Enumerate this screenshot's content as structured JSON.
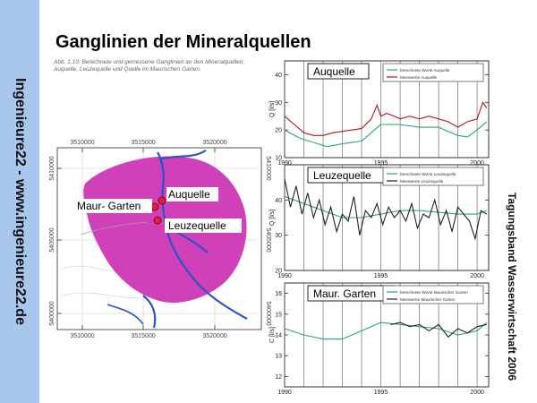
{
  "sidebar": {
    "text": "Ingenieure22 - www.ingenieure22.de"
  },
  "slide": {
    "title": "Ganglinien der Mineralquellen",
    "right_text": "Tagungsband Wasserwirtschaft 2006"
  },
  "caption": "Abb. 1.10: Berechnete und gemessene Ganglinien an den Mineralquellen; Auquelle, Leuzequelle und Quelle im Maurischen Garten.",
  "map": {
    "x_ticks": [
      "3510000",
      "3515000",
      "3520000"
    ],
    "y_ticks": [
      "5410000",
      "5405000",
      "5400000"
    ],
    "labels": {
      "auquelle": "Auquelle",
      "maur": "Maur- Garten",
      "leuze": "Leuzequelle"
    },
    "colors": {
      "plume": "#d040b8",
      "river": "#2a55c8",
      "spring": "#e0203a"
    }
  },
  "chart_data": [
    {
      "type": "line",
      "title": "Auquelle",
      "ylabel": "Q [l/s]",
      "y_ticks": [
        "40",
        "30",
        "20",
        "10"
      ],
      "x_ticks": [
        "1990",
        "1995",
        "2000"
      ],
      "ylim": [
        10,
        45
      ],
      "xlim": [
        1990,
        2000.6
      ],
      "legend": [
        "berechnete Werte Auquelle",
        "Messwerte Auquelle"
      ],
      "series": [
        {
          "name": "berechnete Werte Auquelle",
          "color": "#2ea86a",
          "x": [
            1990.0,
            1990.8,
            1991.5,
            1992.2,
            1993.0,
            1994.0,
            1994.5,
            1995.0,
            1996.0,
            1997.0,
            1998.0,
            1998.5,
            1999.0,
            1999.5,
            2000.0,
            2000.5
          ],
          "y": [
            20,
            17,
            15.5,
            14,
            15,
            16,
            19,
            22,
            22,
            21,
            21,
            19.5,
            18,
            17.5,
            20,
            23
          ]
        },
        {
          "name": "Messwerte Auquelle",
          "color": "#b01818",
          "x": [
            1990.0,
            1990.5,
            1991.0,
            1991.5,
            1992.0,
            1992.5,
            1993.0,
            1993.5,
            1994.0,
            1994.5,
            1994.8,
            1995.0,
            1995.3,
            1995.7,
            1996.0,
            1996.5,
            1997.0,
            1997.5,
            1998.0,
            1998.5,
            1999.0,
            1999.5,
            2000.0,
            2000.3,
            2000.5
          ],
          "y": [
            25,
            22,
            19,
            18,
            18,
            19,
            19.5,
            20,
            20.5,
            24,
            29,
            25,
            26,
            25,
            24,
            25,
            24,
            25,
            24,
            23,
            21,
            23,
            24,
            30,
            28
          ]
        }
      ]
    },
    {
      "type": "line",
      "title": "Leuzequelle",
      "ylabel": "Q [l/s]",
      "y_ticks": [
        "40",
        "30",
        "20"
      ],
      "x_ticks": [
        "1990",
        "1995",
        "2000"
      ],
      "ylim": [
        20,
        50
      ],
      "xlim": [
        1990,
        2000.6
      ],
      "legend": [
        "berechnete Werte Leuzequelle",
        "Messwerte Leuzequelle"
      ],
      "series": [
        {
          "name": "berechnete Werte Leuzequelle",
          "color": "#2ea86a",
          "x": [
            1990.0,
            1991.0,
            1992.0,
            1993.0,
            1994.0,
            1995.0,
            1996.0,
            1997.0,
            1998.0,
            1999.0,
            2000.0,
            2000.5
          ],
          "y": [
            41,
            39,
            37,
            35,
            35,
            36,
            37,
            37,
            36.5,
            36,
            36,
            37
          ]
        },
        {
          "name": "Messwerte Leuzequelle",
          "color": "#222222",
          "x": [
            1990.0,
            1990.3,
            1990.6,
            1990.9,
            1991.2,
            1991.5,
            1991.8,
            1992.1,
            1992.4,
            1992.7,
            1993.0,
            1993.3,
            1993.6,
            1993.9,
            1994.2,
            1994.5,
            1994.8,
            1995.1,
            1995.4,
            1995.7,
            1996.0,
            1996.3,
            1996.6,
            1996.9,
            1997.2,
            1997.5,
            1997.8,
            1998.1,
            1998.4,
            1998.7,
            1999.0,
            1999.3,
            1999.6,
            1999.9,
            2000.2,
            2000.5
          ],
          "y": [
            46,
            38,
            44,
            36,
            42,
            35,
            40,
            33,
            38,
            31,
            36,
            34,
            41,
            30,
            37,
            35,
            39,
            33,
            38,
            35,
            37,
            34,
            39,
            32,
            36,
            35,
            40,
            33,
            37,
            31,
            38,
            36,
            34,
            29,
            37,
            36
          ]
        }
      ]
    },
    {
      "type": "line",
      "title": "Maur. Garten",
      "ylabel": "C [l/s]",
      "y_ticks": [
        "16",
        "15",
        "14",
        "13",
        "12"
      ],
      "x_ticks": [
        "1990",
        "1995",
        "2000"
      ],
      "ylim": [
        11.5,
        16.5
      ],
      "xlim": [
        1990,
        2000.6
      ],
      "legend": [
        "berechnete Werte Maurischer Garten",
        "Messwerte Maurischer Garten"
      ],
      "series": [
        {
          "name": "berechnete Werte Maurischer Garten",
          "color": "#2ea86a",
          "x": [
            1990.0,
            1991.0,
            1992.0,
            1993.0,
            1994.0,
            1995.0,
            1996.0,
            1997.0,
            1998.0,
            1999.0,
            2000.0,
            2000.5
          ],
          "y": [
            14.3,
            14.0,
            13.8,
            13.8,
            14.2,
            14.6,
            14.5,
            14.4,
            14.3,
            14.0,
            14.2,
            14.6
          ]
        },
        {
          "name": "Messwerte Maurischer Garten",
          "color": "#222222",
          "x": [
            1995.5,
            1996.0,
            1996.5,
            1997.0,
            1997.5,
            1998.0,
            1998.5,
            1999.0,
            1999.5,
            2000.0,
            2000.5
          ],
          "y": [
            14.5,
            14.6,
            14.4,
            14.5,
            14.2,
            14.5,
            13.9,
            14.3,
            14.1,
            14.4,
            14.5
          ]
        }
      ]
    }
  ]
}
